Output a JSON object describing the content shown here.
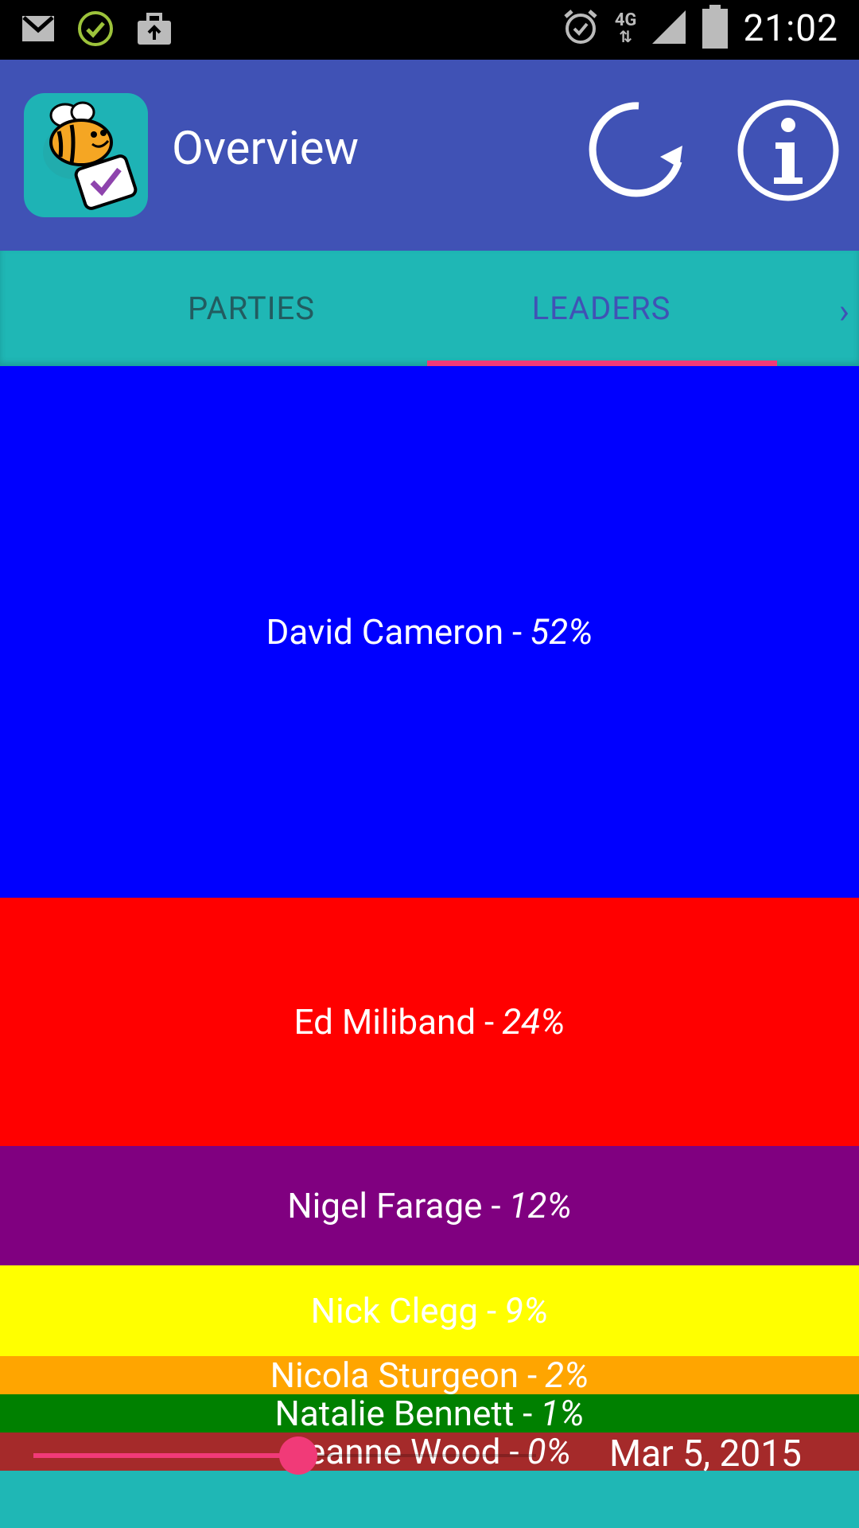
{
  "status_bar": {
    "time": "21:02",
    "network": "4G",
    "icons": [
      "gmail-icon",
      "check-circle-icon",
      "briefcase-upload-icon",
      "alarm-icon",
      "signal-icon",
      "battery-icon"
    ]
  },
  "app_bar": {
    "title": "Overview",
    "actions": [
      "refresh-icon",
      "info-icon"
    ]
  },
  "tabs": {
    "items": [
      {
        "label": "PARTIES"
      },
      {
        "label": "LEADERS"
      }
    ],
    "selected": "LEADERS"
  },
  "leaders": [
    {
      "name": "David Cameron",
      "percent": "52%",
      "color": "#0000ff"
    },
    {
      "name": "Ed Miliband",
      "percent": "24%",
      "color": "#ff0000"
    },
    {
      "name": "Nigel Farage",
      "percent": "12%",
      "color": "#800080"
    },
    {
      "name": "Nick Clegg",
      "percent": "9%",
      "color": "#ffff00"
    },
    {
      "name": "Nicola Sturgeon",
      "percent": "2%",
      "color": "#ffa500"
    },
    {
      "name": "Natalie Bennett",
      "percent": "1%",
      "color": "#008000"
    },
    {
      "name": "Leanne Wood",
      "percent": "0%",
      "color": "#a52a2a"
    }
  ],
  "slider": {
    "date": "Mar 5, 2015",
    "position": 0.45
  }
}
